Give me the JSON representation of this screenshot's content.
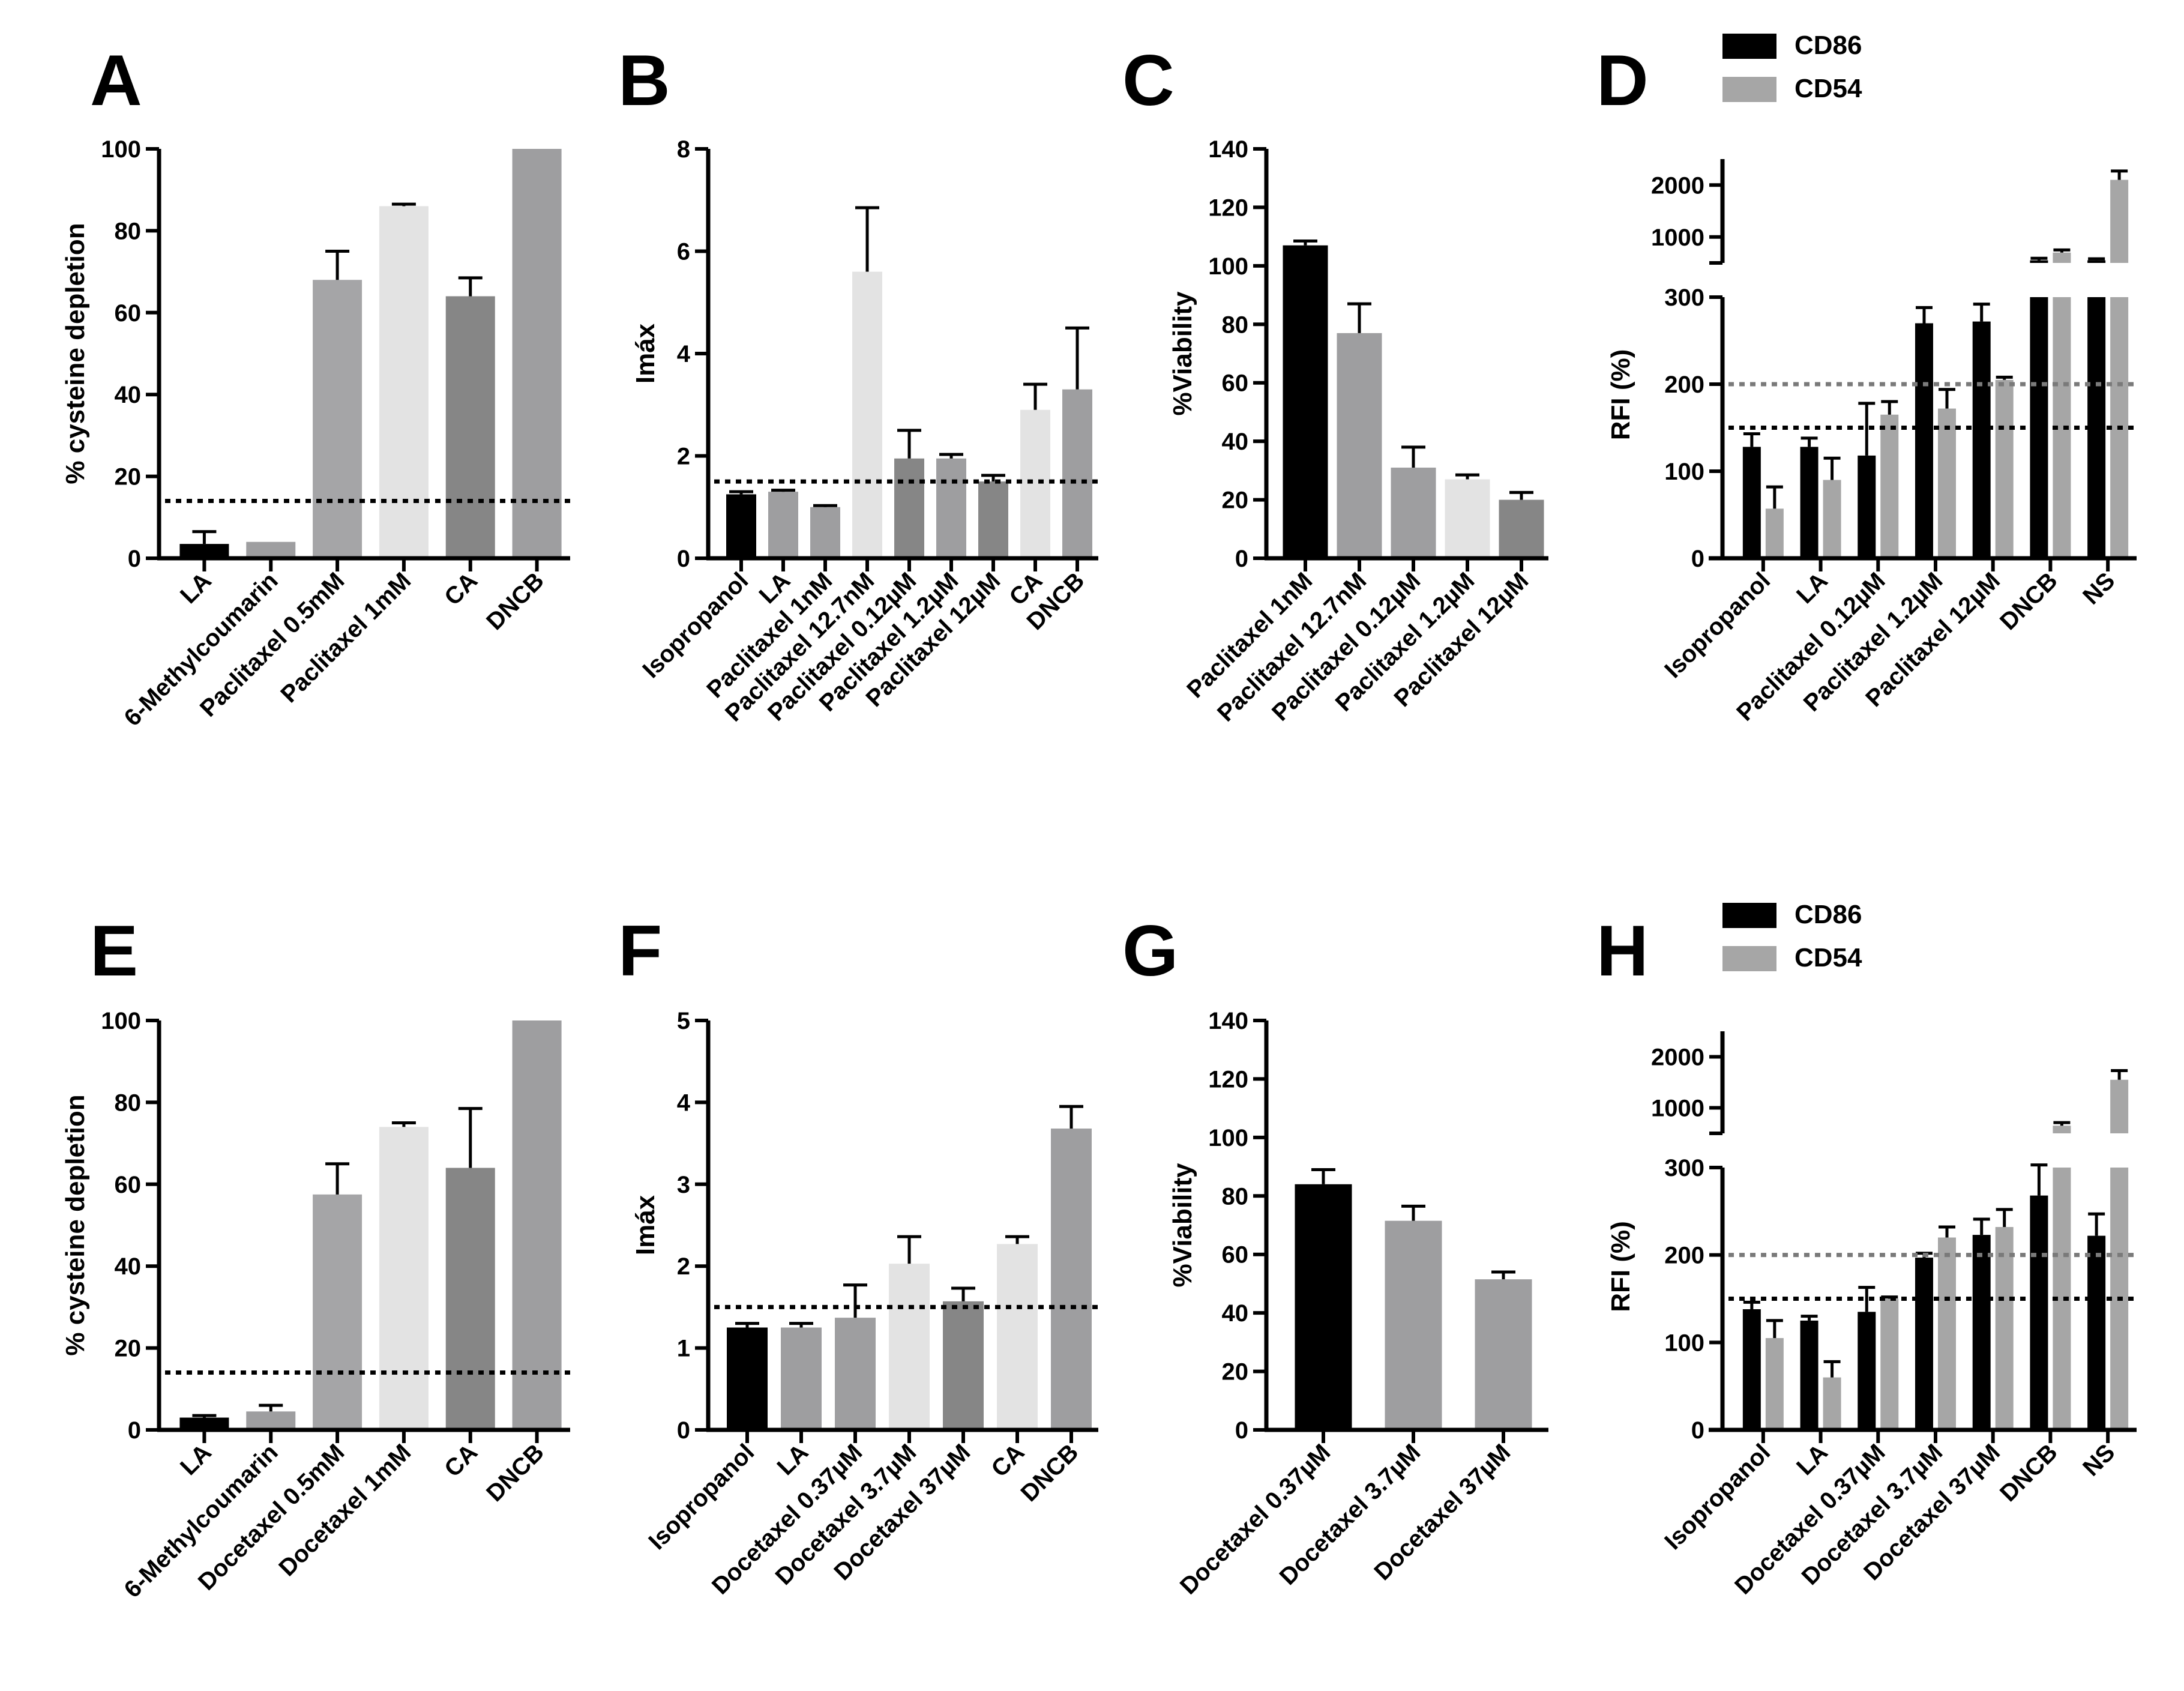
{
  "colors": {
    "black": "#000000",
    "grey": "#9e9ea0",
    "mid_grey": "#a5a5a7",
    "light_grey": "#e3e3e3",
    "dark_grey": "#868686",
    "cd54_grey": "#a6a6a6",
    "dotted_black": "#000000",
    "dotted_grey": "#7a7a7a"
  },
  "chart_data": [
    {
      "id": "A",
      "letter": "A",
      "type": "bar",
      "ylabel": "% cysteine depletion",
      "ylim": [
        0,
        100
      ],
      "yticks": [
        0,
        20,
        40,
        60,
        80,
        100
      ],
      "categories": [
        "LA",
        "6-Methylcoumarin",
        "Paclitaxel 0.5mM",
        "Paclitaxel 1mM",
        "CA",
        "DNCB"
      ],
      "values": [
        3.5,
        4,
        68,
        86,
        64,
        100
      ],
      "errors": [
        3,
        0,
        7,
        0.5,
        4.5,
        0
      ],
      "colors": [
        "black",
        "grey",
        "mid_grey",
        "light_grey",
        "dark_grey",
        "grey"
      ],
      "threshold": 14
    },
    {
      "id": "B",
      "letter": "B",
      "type": "bar",
      "ylabel": "Imáx",
      "ylim": [
        0,
        8
      ],
      "yticks": [
        0,
        2,
        4,
        6,
        8
      ],
      "categories": [
        "Isopropanol",
        "LA",
        "Paclitaxel 1nM",
        "Paclitaxel 12.7nM",
        "Paclitaxel 0.12µM",
        "Paclitaxel 1.2µM",
        "Paclitaxel 12µM",
        "CA",
        "DNCB"
      ],
      "values": [
        1.25,
        1.3,
        1.0,
        5.6,
        1.95,
        1.95,
        1.5,
        2.9,
        3.3
      ],
      "errors": [
        0.05,
        0.03,
        0.03,
        1.25,
        0.55,
        0.08,
        0.12,
        0.5,
        1.2
      ],
      "colors": [
        "black",
        "grey",
        "grey",
        "light_grey",
        "dark_grey",
        "grey",
        "dark_grey",
        "light_grey",
        "grey"
      ],
      "threshold": 1.5
    },
    {
      "id": "C",
      "letter": "C",
      "type": "bar",
      "ylabel": "%Viability",
      "ylim": [
        0,
        140
      ],
      "yticks": [
        0,
        20,
        40,
        60,
        80,
        100,
        120,
        140
      ],
      "categories": [
        "Paclitaxel 1nM",
        "Paclitaxel 12.7nM",
        "Paclitaxel 0.12µM",
        "Paclitaxel 1.2µM",
        "Paclitaxel 12µM"
      ],
      "values": [
        107,
        77,
        31,
        27,
        20
      ],
      "errors": [
        1.5,
        10,
        7,
        1.5,
        2.5
      ],
      "colors": [
        "black",
        "grey",
        "grey",
        "light_grey",
        "dark_grey"
      ]
    },
    {
      "id": "D",
      "letter": "D",
      "type": "bar",
      "ylabel": "RFI (%)",
      "lower_ylim": [
        0,
        300
      ],
      "lower_yticks": [
        0,
        100,
        200,
        300
      ],
      "upper_ylim": [
        500,
        2500
      ],
      "upper_yticks": [
        1000,
        2000
      ],
      "categories": [
        "Isopropanol",
        "LA",
        "Paclitaxel 0.12µM",
        "Paclitaxel 1.2µM",
        "Paclitaxel 12µM",
        "DNCB",
        "NS"
      ],
      "series": [
        {
          "name": "CD86",
          "color": "black",
          "values": [
            128,
            128,
            118,
            270,
            272,
            550,
            550
          ],
          "errors": [
            15,
            10,
            60,
            18,
            20,
            40,
            30
          ]
        },
        {
          "name": "CD54",
          "color": "cd54_grey",
          "values": [
            57,
            90,
            165,
            172,
            205,
            700,
            2100
          ],
          "errors": [
            25,
            25,
            15,
            22,
            3,
            50,
            170
          ]
        }
      ],
      "thresholds": [
        {
          "value": 150,
          "color": "dotted_black"
        },
        {
          "value": 200,
          "color": "dotted_grey"
        }
      ]
    },
    {
      "id": "E",
      "letter": "E",
      "type": "bar",
      "ylabel": "% cysteine depletion",
      "ylim": [
        0,
        100
      ],
      "yticks": [
        0,
        20,
        40,
        60,
        80,
        100
      ],
      "categories": [
        "LA",
        "6-Methylcoumarin",
        "Docetaxel 0.5mM",
        "Docetaxel 1mM",
        "CA",
        "DNCB"
      ],
      "values": [
        3,
        4.5,
        57.5,
        74,
        64,
        100
      ],
      "errors": [
        0.5,
        1.5,
        7.5,
        1,
        14.5,
        0
      ],
      "colors": [
        "black",
        "grey",
        "mid_grey",
        "light_grey",
        "dark_grey",
        "grey"
      ],
      "threshold": 14
    },
    {
      "id": "F",
      "letter": "F",
      "type": "bar",
      "ylabel": "Imáx",
      "ylim": [
        0,
        5
      ],
      "yticks": [
        0,
        1,
        2,
        3,
        4,
        5
      ],
      "categories": [
        "Isopropanol",
        "LA",
        "Docetaxel 0.37µM",
        "Docetaxel 3.7µM",
        "Docetaxel 37µM",
        "CA",
        "DNCB"
      ],
      "values": [
        1.25,
        1.25,
        1.37,
        2.03,
        1.57,
        2.27,
        3.68
      ],
      "errors": [
        0.05,
        0.05,
        0.4,
        0.33,
        0.16,
        0.09,
        0.27
      ],
      "colors": [
        "black",
        "grey",
        "grey",
        "light_grey",
        "dark_grey",
        "light_grey",
        "grey"
      ],
      "threshold": 1.5
    },
    {
      "id": "G",
      "letter": "G",
      "type": "bar",
      "ylabel": "%Viability",
      "ylim": [
        0,
        140
      ],
      "yticks": [
        0,
        20,
        40,
        60,
        80,
        100,
        120,
        140
      ],
      "categories": [
        "Docetaxel 0.37µM",
        "Docetaxel 3.7µM",
        "Docetaxel 37µM"
      ],
      "values": [
        84,
        71.5,
        51.5
      ],
      "errors": [
        5,
        5,
        2.5
      ],
      "colors": [
        "black",
        "grey",
        "grey"
      ]
    },
    {
      "id": "H",
      "letter": "H",
      "type": "bar",
      "ylabel": "RFI (%)",
      "lower_ylim": [
        0,
        300
      ],
      "lower_yticks": [
        0,
        100,
        200,
        300
      ],
      "upper_ylim": [
        500,
        2500
      ],
      "upper_yticks": [
        1000,
        2000
      ],
      "categories": [
        "Isopropanol",
        "LA",
        "Docetaxel 0.37µM",
        "Docetaxel 3.7µM",
        "Docetaxel 37µM",
        "DNCB",
        "NS"
      ],
      "series": [
        {
          "name": "CD86",
          "color": "black",
          "values": [
            138,
            125,
            135,
            197,
            223,
            268,
            222
          ],
          "errors": [
            8,
            5,
            28,
            5,
            18,
            35,
            25
          ]
        },
        {
          "name": "CD54",
          "color": "cd54_grey",
          "values": [
            105,
            60,
            150,
            220,
            232,
            650,
            1550
          ],
          "errors": [
            20,
            18,
            2,
            12,
            20,
            60,
            180
          ]
        }
      ],
      "thresholds": [
        {
          "value": 150,
          "color": "dotted_black"
        },
        {
          "value": 200,
          "color": "dotted_grey"
        }
      ]
    }
  ]
}
